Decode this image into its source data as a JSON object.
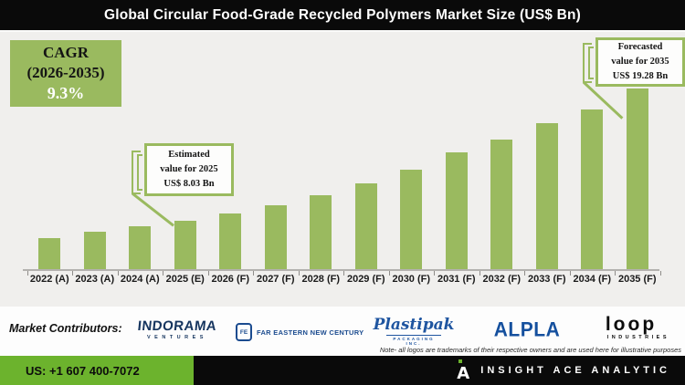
{
  "title": "Global Circular Food-Grade Recycled Polymers Market Size (US$ Bn)",
  "cagr_box": {
    "label": "CAGR",
    "period": "(2026-2035)",
    "value": "9.3%"
  },
  "callouts": {
    "estimated": {
      "line1": "Estimated",
      "line2": "value for 2025",
      "line3": "US$ 8.03 Bn"
    },
    "forecasted": {
      "line1": "Forecasted",
      "line2": "value for 2035",
      "line3": "US$ 19.28 Bn"
    }
  },
  "chart_data": {
    "type": "bar",
    "title": "Global Circular Food-Grade Recycled Polymers Market Size (US$ Bn)",
    "unit": "US$ Bn",
    "categories": [
      "2022 (A)",
      "2023 (A)",
      "2024 (A)",
      "2025 (E)",
      "2026 (F)",
      "2027 (F)",
      "2028 (F)",
      "2029 (F)",
      "2030 (F)",
      "2031 (F)",
      "2032 (F)",
      "2033 (F)",
      "2034 (F)",
      "2035 (F)"
    ],
    "values": [
      6.56,
      7.1,
      7.57,
      8.03,
      8.65,
      9.35,
      10.21,
      11.21,
      12.38,
      13.85,
      14.94,
      16.33,
      17.5,
      19.28
    ],
    "labeled_values": {
      "2025 (E)": 8.03,
      "2035 (F)": 19.28
    },
    "cagr_2026_2035_pct": 9.3,
    "bar_color": "#9aba5f",
    "grid": false,
    "legend": false,
    "y_axis_shown": false
  },
  "contributors": {
    "label": "Market Contributors:",
    "indorama": {
      "name": "INDORAMA",
      "sub": "VENTURES"
    },
    "fenc": {
      "monogram": "FE",
      "name": "FAR EASTERN NEW CENTURY"
    },
    "plastipak": {
      "name": "Plastipak",
      "sub": "PACKAGING INC."
    },
    "alpla": {
      "name": "ALPLA"
    },
    "loop": {
      "name": "loop",
      "sub": "INDUSTRIES"
    },
    "note": "Note- all logos are trademarks of their respective owners and are used here for illustrative purposes"
  },
  "footer": {
    "phone": "US: +1 607 400-7072",
    "brand": "INSIGHT ACE ANALYTIC"
  },
  "colors": {
    "bar_green": "#9aba5f",
    "footer_green": "#6cb32d",
    "title_bar_bg": "#0a0a0a",
    "chart_bg": "#f0efed",
    "logo_navy": "#16355f"
  }
}
